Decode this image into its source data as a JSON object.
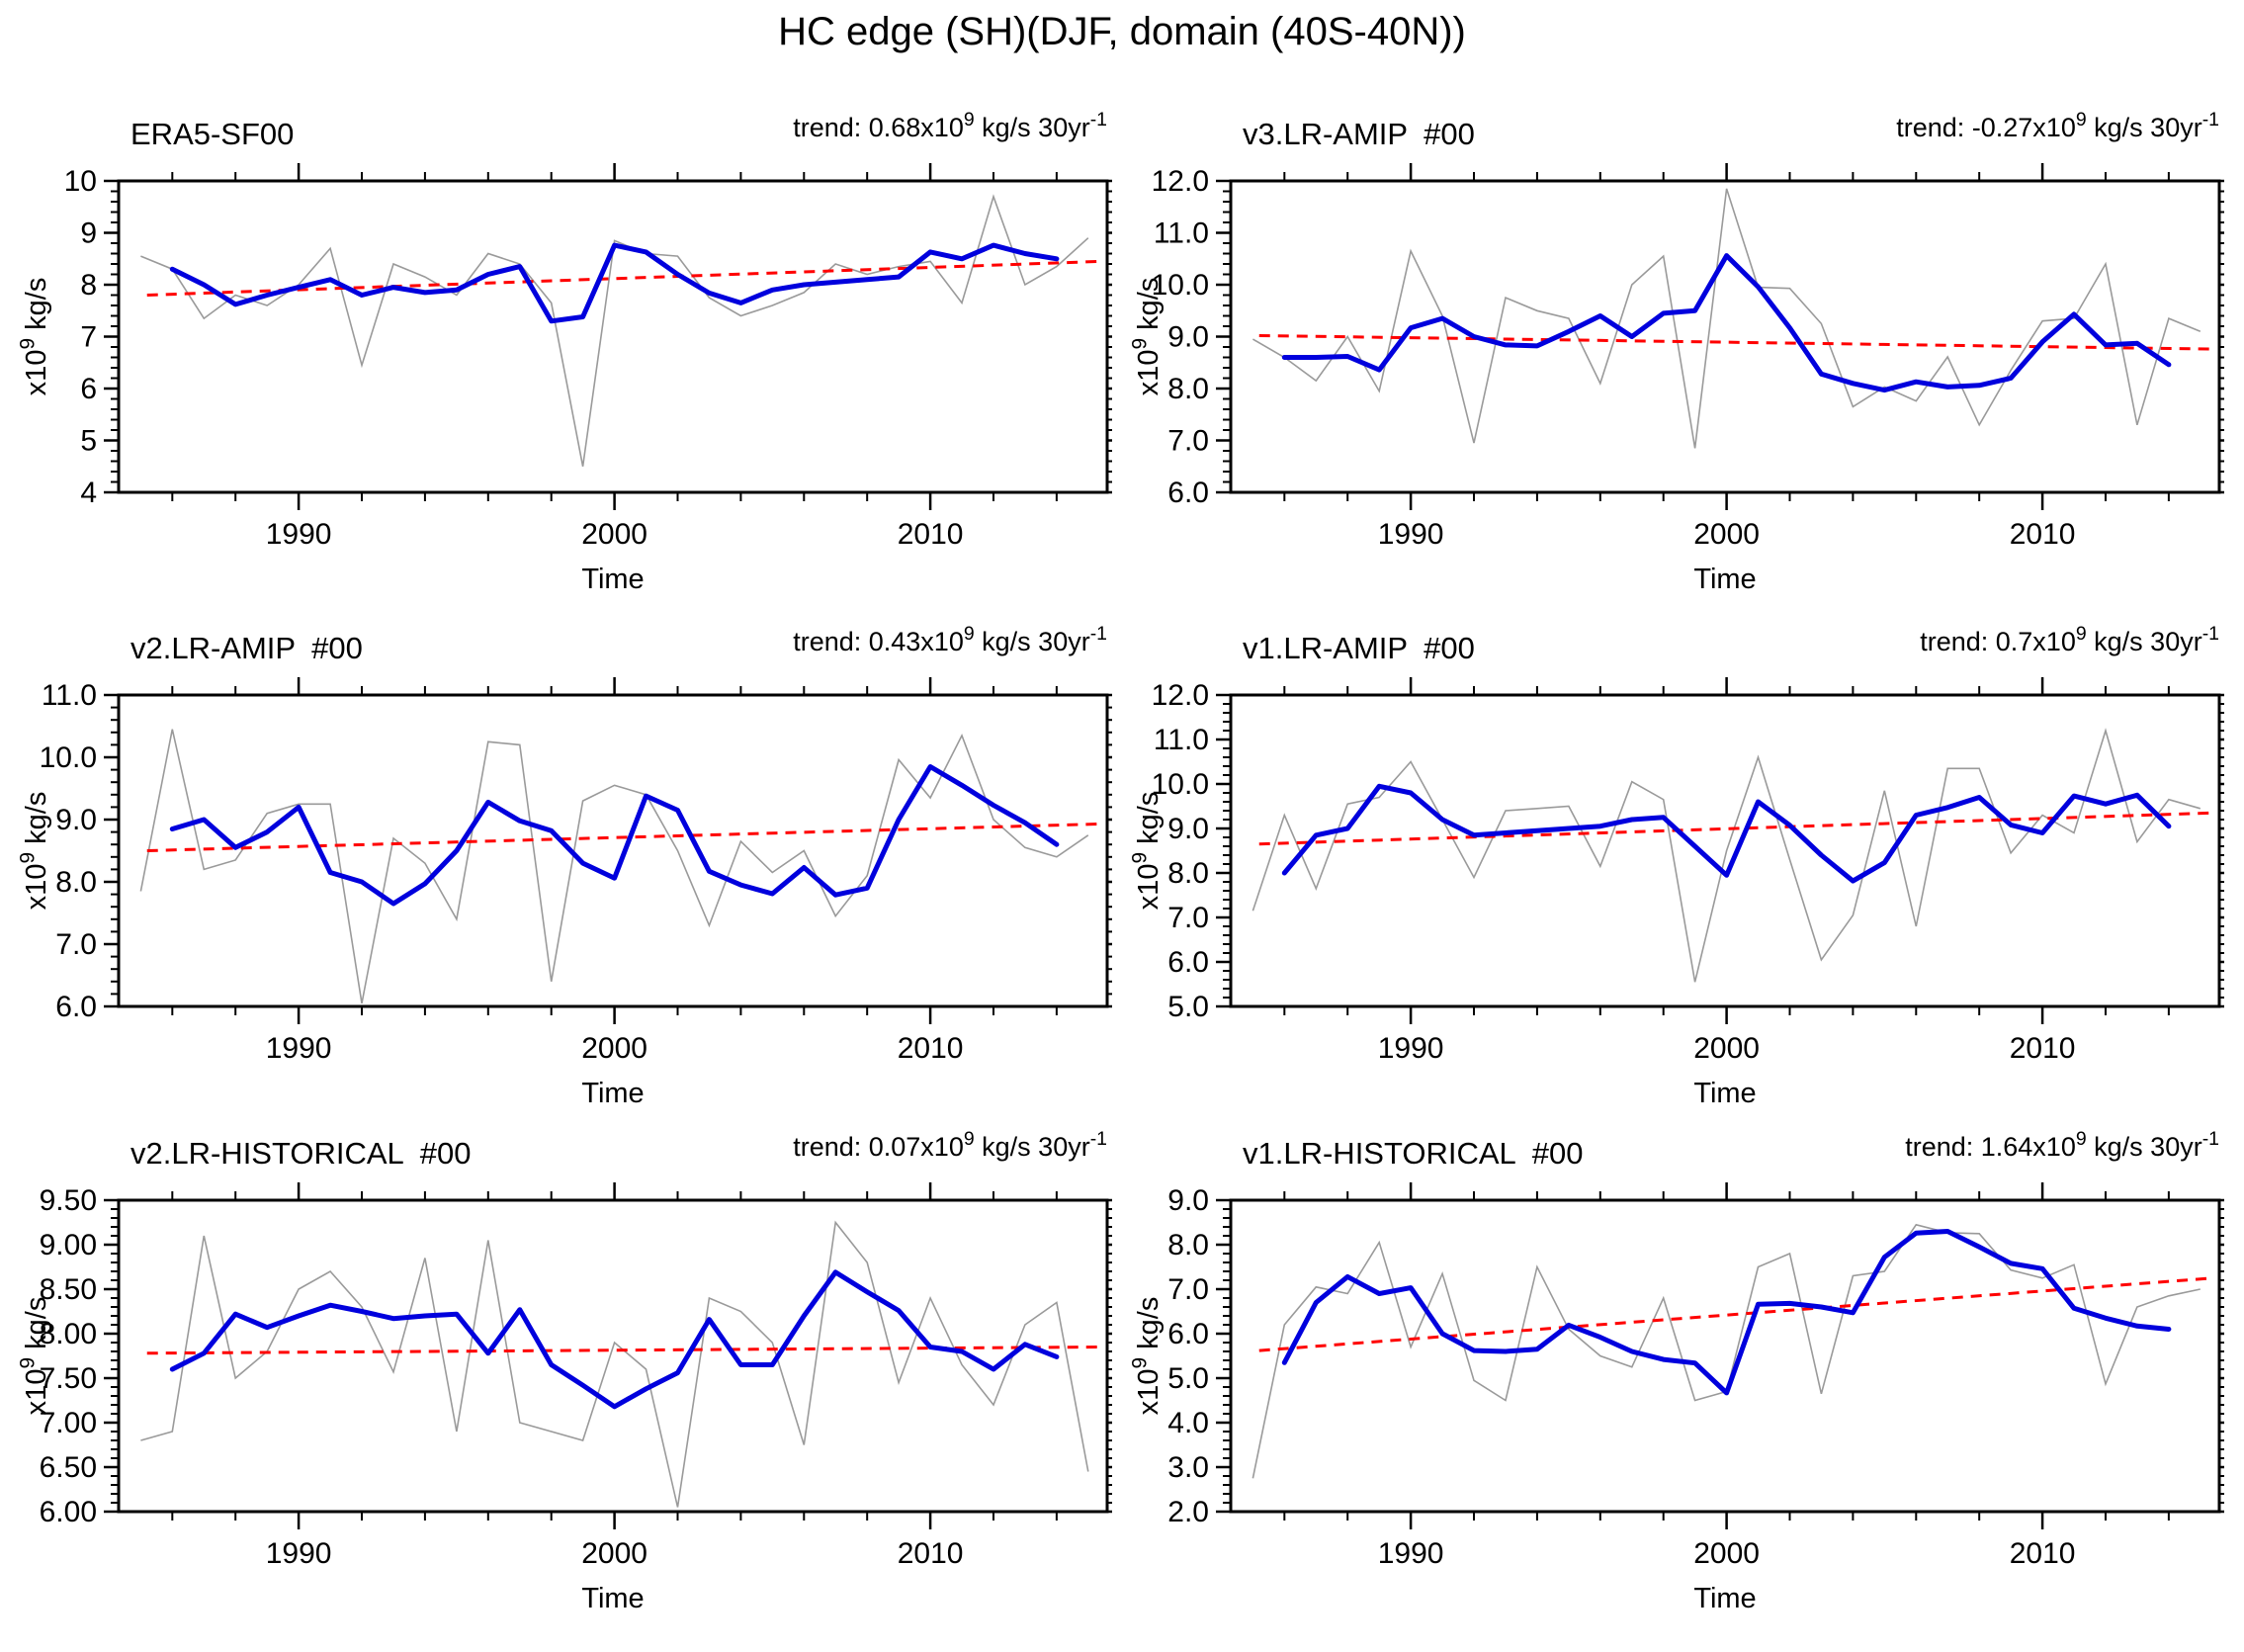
{
  "title": "HC edge (SH)(DJF, domain (40S-40N))",
  "shared": {
    "trend_prefix": "trend: ",
    "x10": "x10",
    "exp9": "9",
    "trend_units": " kg/s 30yr",
    "sup_minus_one": "-1",
    "ylabel_units": " kg/s",
    "xlabel": "Time"
  },
  "colors": {
    "gray_series": "#9a9a9a",
    "blue_series": "#0000dd",
    "red_trend": "#ff0000",
    "frame": "#000000",
    "text": "#000000"
  },
  "chart_data": {
    "type": "line",
    "figure_title": "HC edge (SH)(DJF, domain (40S-40N))",
    "grid": "off",
    "legend": "none",
    "x": {
      "xlabel": "Time",
      "xlim": [
        1984.3,
        2015.6
      ],
      "major_tick_years": [
        1990,
        2000,
        2010
      ],
      "minor_tick_step_years": 2,
      "data_start_year": 1985,
      "data_end_year": 2015
    },
    "series_roles": {
      "gray": "yearly values",
      "blue": "smoothed values",
      "red_dashed": "linear trend"
    },
    "panels": [
      {
        "title": "ERA5-SF00",
        "run_label": "",
        "trend_value": "0.68",
        "ylim": [
          4,
          10
        ],
        "ytick_values": [
          4,
          5,
          6,
          7,
          8,
          9,
          10
        ],
        "ytick_labels": [
          "4",
          "5",
          "6",
          "7",
          "8",
          "9",
          "10"
        ],
        "y_minor_step": 0.2,
        "gray_start_year": 1985,
        "gray_values": [
          8.55,
          8.3,
          7.35,
          7.8,
          7.6,
          8.0,
          8.7,
          6.45,
          8.4,
          8.15,
          7.8,
          8.6,
          8.4,
          7.65,
          4.5,
          8.85,
          8.6,
          8.55,
          7.75,
          7.4,
          7.6,
          7.85,
          8.4,
          8.2,
          8.35,
          8.45,
          7.65,
          9.7,
          8.0,
          8.35,
          8.9
        ],
        "blue_start_year": 1986,
        "blue_values": [
          8.3,
          8.0,
          7.62,
          7.8,
          7.95,
          8.1,
          7.8,
          7.95,
          7.85,
          7.9,
          8.2,
          8.35,
          7.3,
          7.38,
          8.76,
          8.63,
          8.2,
          7.84,
          7.65,
          7.9,
          8.0,
          8.05,
          8.1,
          8.15,
          8.63,
          8.5,
          8.76,
          8.6,
          8.5
        ],
        "trend_endpoints": [
          7.8,
          8.45
        ]
      },
      {
        "title": "v3.LR-AMIP",
        "run_label": "#00",
        "trend_value": "-0.27",
        "ylim": [
          6,
          12
        ],
        "ytick_values": [
          6,
          7,
          8,
          9,
          10,
          11,
          12
        ],
        "ytick_labels": [
          "6.0",
          "7.0",
          "8.0",
          "9.0",
          "10.0",
          "11.0",
          "12.0"
        ],
        "y_minor_step": 0.2,
        "gray_start_year": 1985,
        "gray_values": [
          8.95,
          8.6,
          8.15,
          9.0,
          7.95,
          10.65,
          9.4,
          6.95,
          9.75,
          9.5,
          9.35,
          8.1,
          10.0,
          10.55,
          6.85,
          11.85,
          9.95,
          9.93,
          9.25,
          7.65,
          8.03,
          7.76,
          8.61,
          7.3,
          8.35,
          9.3,
          9.35,
          10.4,
          7.3,
          9.35,
          9.1
        ],
        "blue_start_year": 1986,
        "blue_values": [
          8.6,
          8.6,
          8.62,
          8.36,
          9.17,
          9.35,
          9.0,
          8.84,
          8.82,
          9.1,
          9.4,
          9.0,
          9.45,
          9.5,
          10.56,
          9.96,
          9.17,
          8.28,
          8.1,
          7.97,
          8.13,
          8.03,
          8.06,
          8.2,
          8.9,
          9.43,
          8.84,
          8.87,
          8.46
        ],
        "trend_endpoints": [
          9.02,
          8.76
        ]
      },
      {
        "title": "v2.LR-AMIP",
        "run_label": "#00",
        "trend_value": "0.43",
        "ylim": [
          6,
          11
        ],
        "ytick_values": [
          6,
          7,
          8,
          9,
          10,
          11
        ],
        "ytick_labels": [
          "6.0",
          "7.0",
          "8.0",
          "9.0",
          "10.0",
          "11.0"
        ],
        "y_minor_step": 0.2,
        "gray_start_year": 1985,
        "gray_values": [
          7.85,
          10.45,
          8.2,
          8.35,
          9.1,
          9.25,
          9.25,
          6.05,
          8.7,
          8.3,
          7.4,
          10.25,
          10.2,
          6.4,
          9.3,
          9.55,
          9.4,
          8.5,
          7.3,
          8.65,
          8.15,
          8.5,
          7.45,
          8.1,
          9.96,
          9.35,
          10.35,
          9.0,
          8.55,
          8.4,
          8.75
        ],
        "blue_start_year": 1986,
        "blue_values": [
          8.85,
          9.0,
          8.55,
          8.8,
          9.2,
          8.15,
          8.0,
          7.65,
          7.97,
          8.5,
          9.28,
          8.98,
          8.82,
          8.3,
          8.06,
          9.38,
          9.15,
          8.17,
          7.95,
          7.81,
          8.23,
          7.79,
          7.9,
          9.0,
          9.85,
          9.55,
          9.23,
          8.95,
          8.6
        ],
        "trend_endpoints": [
          8.5,
          8.93
        ]
      },
      {
        "title": "v1.LR-AMIP",
        "run_label": "#00",
        "trend_value": "0.7",
        "ylim": [
          5,
          12
        ],
        "ytick_values": [
          5,
          6,
          7,
          8,
          9,
          10,
          11,
          12
        ],
        "ytick_labels": [
          "5.0",
          "6.0",
          "7.0",
          "8.0",
          "9.0",
          "10.0",
          "11.0",
          "12.0"
        ],
        "y_minor_step": 0.2,
        "gray_start_year": 1985,
        "gray_values": [
          7.15,
          9.3,
          7.65,
          9.55,
          9.7,
          10.5,
          9.2,
          7.9,
          9.4,
          9.45,
          9.5,
          8.15,
          10.05,
          9.65,
          5.55,
          8.5,
          10.6,
          8.3,
          6.05,
          7.05,
          9.85,
          6.8,
          10.35,
          10.35,
          8.45,
          9.3,
          8.9,
          11.2,
          8.7,
          9.65,
          9.45
        ],
        "blue_start_year": 1986,
        "blue_values": [
          8.0,
          8.85,
          9.0,
          9.95,
          9.8,
          9.2,
          8.85,
          8.9,
          8.95,
          9.0,
          9.05,
          9.2,
          9.25,
          8.6,
          7.95,
          9.6,
          9.07,
          8.4,
          7.82,
          8.23,
          9.3,
          9.47,
          9.7,
          9.08,
          8.9,
          9.73,
          9.55,
          9.75,
          9.05
        ],
        "trend_endpoints": [
          8.65,
          9.35
        ]
      },
      {
        "title": "v2.LR-HISTORICAL",
        "run_label": "#00",
        "trend_value": "0.07",
        "ylim": [
          6,
          9.5
        ],
        "ytick_values": [
          6,
          6.5,
          7,
          7.5,
          8,
          8.5,
          9,
          9.5
        ],
        "ytick_labels": [
          "6.00",
          "6.50",
          "7.00",
          "7.50",
          "8.00",
          "8.50",
          "9.00",
          "9.50"
        ],
        "y_minor_step": 0.1,
        "gray_start_year": 1985,
        "gray_values": [
          6.8,
          6.9,
          9.1,
          7.5,
          7.8,
          8.5,
          8.7,
          8.3,
          7.57,
          8.85,
          6.9,
          9.05,
          7.0,
          6.9,
          6.8,
          7.9,
          7.6,
          6.05,
          8.4,
          8.25,
          7.9,
          6.75,
          9.25,
          8.8,
          7.45,
          8.4,
          7.65,
          7.2,
          8.1,
          8.35,
          6.45
        ],
        "blue_start_year": 1986,
        "blue_values": [
          7.6,
          7.78,
          8.22,
          8.07,
          8.2,
          8.32,
          8.25,
          8.17,
          8.2,
          8.22,
          7.78,
          8.27,
          7.65,
          7.42,
          7.18,
          7.38,
          7.56,
          8.16,
          7.65,
          7.65,
          8.2,
          8.69,
          8.47,
          8.26,
          7.85,
          7.8,
          7.6,
          7.88,
          7.74
        ],
        "trend_endpoints": [
          7.78,
          7.85
        ]
      },
      {
        "title": "v1.LR-HISTORICAL",
        "run_label": "#00",
        "trend_value": "1.64",
        "ylim": [
          2,
          9
        ],
        "ytick_values": [
          2,
          3,
          4,
          5,
          6,
          7,
          8,
          9
        ],
        "ytick_labels": [
          "2.0",
          "3.0",
          "4.0",
          "5.0",
          "6.0",
          "7.0",
          "8.0",
          "9.0"
        ],
        "y_minor_step": 0.2,
        "gray_start_year": 1985,
        "gray_values": [
          2.75,
          6.2,
          7.05,
          6.9,
          8.05,
          5.7,
          7.35,
          4.95,
          4.5,
          7.5,
          6.1,
          5.5,
          5.25,
          6.8,
          4.5,
          4.7,
          7.5,
          7.8,
          4.65,
          7.3,
          7.4,
          8.45,
          8.27,
          8.25,
          7.43,
          7.25,
          7.55,
          4.87,
          6.6,
          6.85,
          7.0
        ],
        "blue_start_year": 1986,
        "blue_values": [
          5.35,
          6.7,
          7.28,
          6.9,
          7.03,
          6.0,
          5.62,
          5.6,
          5.65,
          6.19,
          5.92,
          5.6,
          5.42,
          5.34,
          4.67,
          6.66,
          6.68,
          6.6,
          6.47,
          7.72,
          8.26,
          8.3,
          7.95,
          7.58,
          7.46,
          6.57,
          6.35,
          6.17,
          6.1
        ],
        "trend_endpoints": [
          5.62,
          7.25
        ]
      }
    ]
  }
}
